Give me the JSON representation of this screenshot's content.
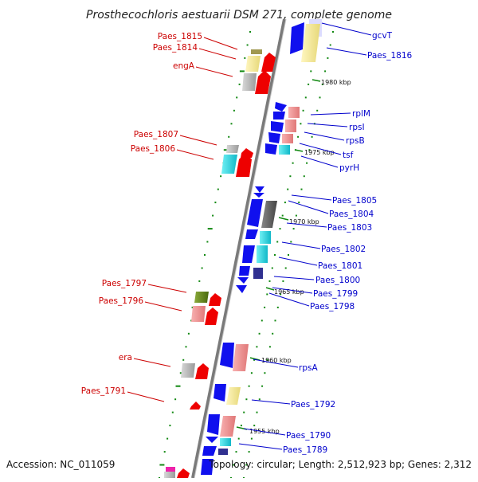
{
  "title": "Prosthecochloris aestuarii DSM 271, complete genome",
  "footer": {
    "accession": "Accession: NC_011059",
    "topology": "Topology: circular; Length: 2,512,923 bp; Genes: 2,312"
  },
  "colors": {
    "backbone": "#888888",
    "dots": "#118811",
    "left_labels": "#cc0000",
    "right_labels": "#0000cc",
    "arrow_red": "#ee0000",
    "arrow_blue": "#1010ee",
    "salmon": "#f09090",
    "cyan": "#20d8e0",
    "gray": "#b8b8b8",
    "yellow": "#f0e6a0",
    "olive": "#6a8a1e",
    "navy": "#303090",
    "magenta": "#ee22aa"
  },
  "kbp_markers": [
    "1980 kbp",
    "1975 kbp",
    "1970 kbp",
    "1965 kbp",
    "1960 kbp",
    "1955 kbp"
  ],
  "left_labels": [
    "Paes_1815",
    "Paes_1814",
    "engA",
    "Paes_1807",
    "Paes_1806",
    "Paes_1797",
    "Paes_1796",
    "era",
    "Paes_1791"
  ],
  "right_labels": [
    "gcvT",
    "Paes_1816",
    "rplM",
    "rpsI",
    "rpsB",
    "tsf",
    "pyrH",
    "Paes_1805",
    "Paes_1804",
    "Paes_1803",
    "Paes_1802",
    "Paes_1801",
    "Paes_1800",
    "Paes_1799",
    "Paes_1798",
    "rpsA",
    "Paes_1792",
    "Paes_1790",
    "Paes_1789"
  ]
}
